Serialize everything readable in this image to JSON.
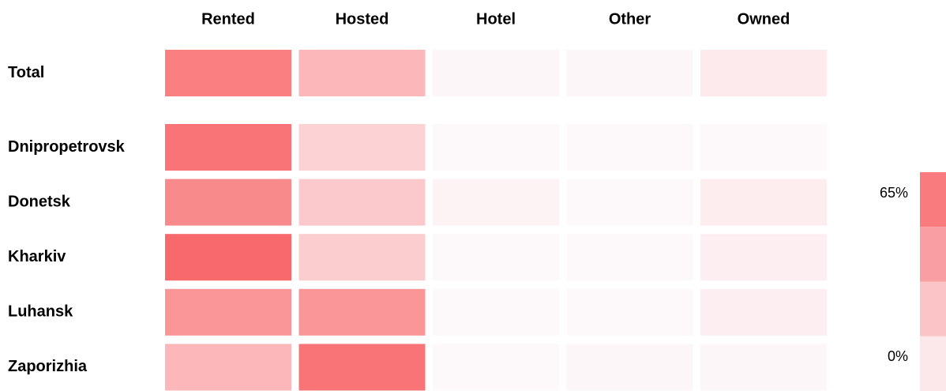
{
  "chart_data": {
    "type": "heatmap",
    "columns": [
      "Rented",
      "Hosted",
      "Hotel",
      "Other",
      "Owned"
    ],
    "rows": [
      "Total",
      "Dnipropetrovsk",
      "Donetsk",
      "Kharkiv",
      "Luhansk",
      "Zaporizhia"
    ],
    "values": [
      [
        55,
        30,
        2,
        2,
        7
      ],
      [
        60,
        18,
        1,
        1,
        1
      ],
      [
        50,
        22,
        3,
        1,
        6
      ],
      [
        65,
        20,
        1,
        1,
        5
      ],
      [
        45,
        45,
        1,
        1,
        5
      ],
      [
        30,
        60,
        1,
        2,
        2
      ]
    ],
    "colorscale": [
      "#fdfafc",
      "#f8696b"
    ],
    "clim": [
      0,
      65
    ],
    "cticks": [
      {
        "value": 65,
        "label": "65%"
      },
      {
        "value": 0,
        "label": "0%"
      }
    ]
  }
}
